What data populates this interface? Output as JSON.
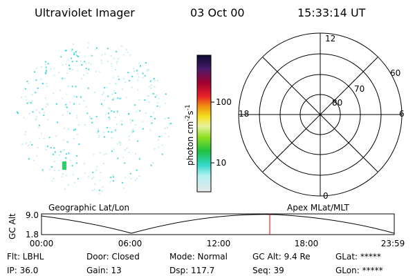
{
  "header": {
    "instrument": "Ultraviolet Imager",
    "date": "03 Oct 00",
    "time": "15:33:14 UT"
  },
  "colorbar": {
    "unit": "photon cm",
    "exp1": "-2",
    "unit2": "s",
    "exp2": "-1",
    "ticks": [
      "100",
      "10"
    ]
  },
  "polar_grid": {
    "mlt": [
      "12",
      "18",
      "6",
      "0"
    ],
    "mlat": [
      "60",
      "70",
      "80"
    ]
  },
  "orbit_plot": {
    "left_title": "Geographic Lat/Lon",
    "right_title": "Apex MLat/MLT",
    "y_title": "GC Alt",
    "y_labels": [
      "9.0",
      "1.8"
    ],
    "x_labels": [
      "00:00",
      "06:00",
      "12:00",
      "18:00",
      "23:59"
    ]
  },
  "status": {
    "rows": [
      [
        "Flt: LBHL",
        "Door: Closed",
        "Mode: Normal",
        "GC Alt: 9.4 Re",
        "GLat: *****"
      ],
      [
        "IP: 36.0",
        "Gain: 13",
        "Dsp: 117.7",
        "Seq: 39",
        "GLon: *****"
      ]
    ]
  }
}
